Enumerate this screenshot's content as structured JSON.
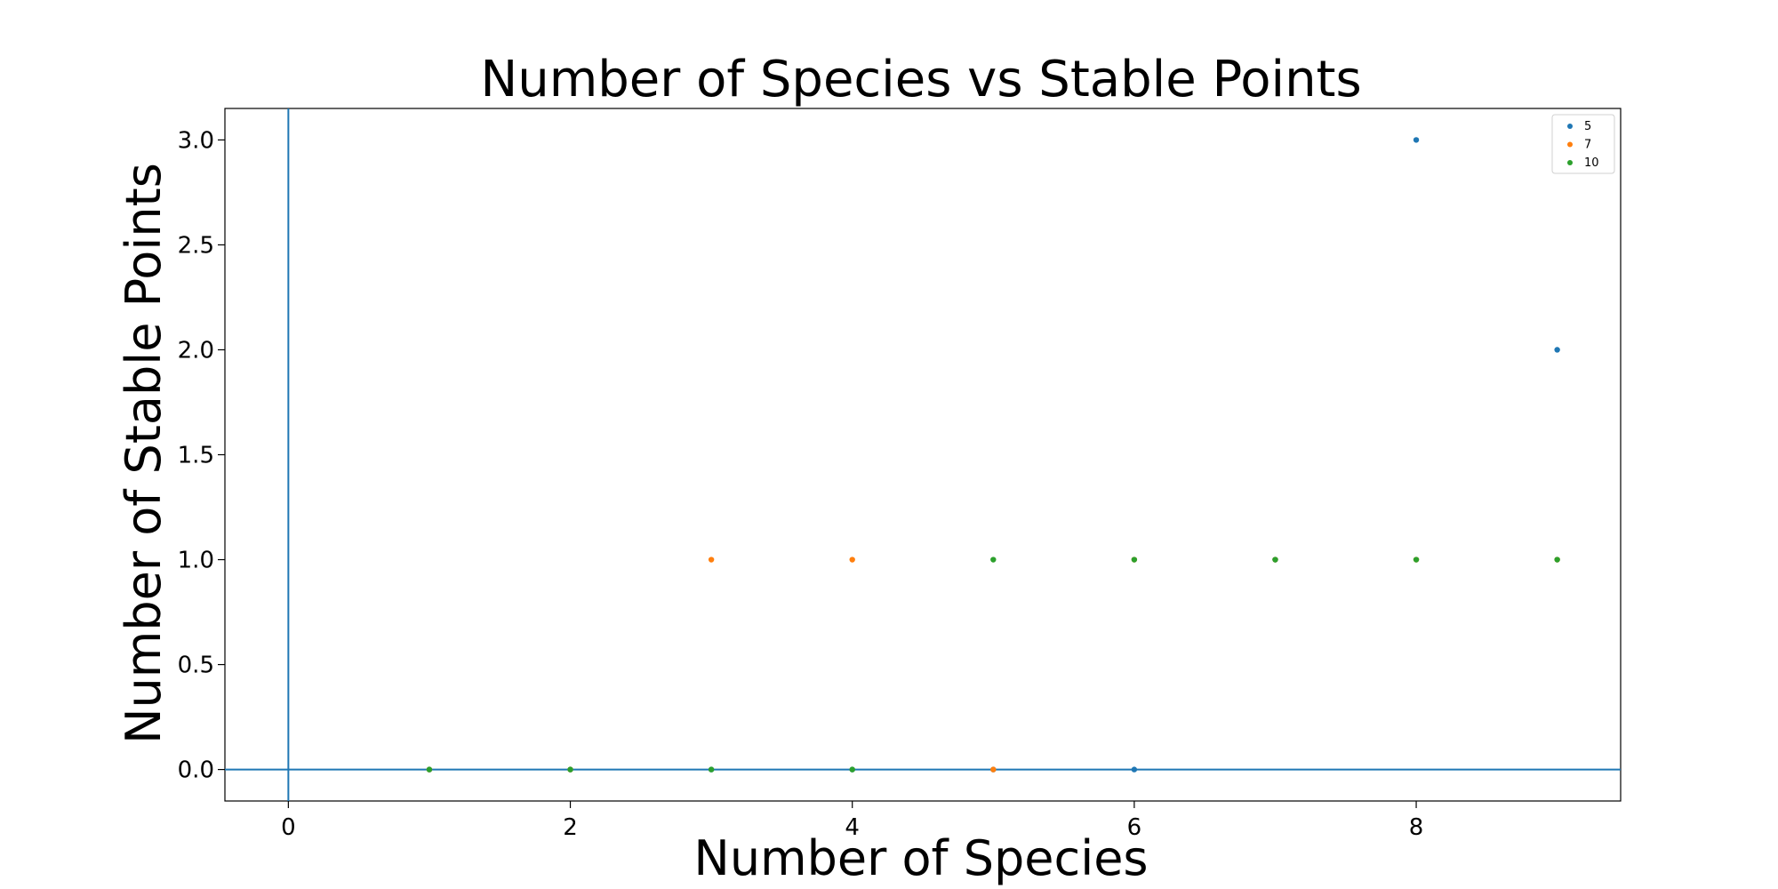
{
  "chart_data": {
    "type": "scatter",
    "title": "Number of Species vs Stable Points",
    "xlabel": "Number of Species",
    "ylabel": "Number of Stable Points",
    "xlim": [
      -0.45,
      9.45
    ],
    "ylim": [
      -0.15,
      3.15
    ],
    "xticks": [
      "0",
      "2",
      "4",
      "6",
      "8"
    ],
    "yticks": [
      "0.0",
      "0.5",
      "1.0",
      "1.5",
      "2.0",
      "2.5",
      "3.0"
    ],
    "grid": false,
    "legend_position": "top-right",
    "reference_lines": {
      "horizontal_y": 0,
      "vertical_x": 0,
      "color": "#1f77b4"
    },
    "series": [
      {
        "name": "5",
        "color": "#1f77b4",
        "x": [
          1,
          2,
          3,
          4,
          5,
          6,
          7,
          8,
          9
        ],
        "y": [
          0,
          0,
          0,
          0,
          0,
          0,
          1,
          3,
          2
        ]
      },
      {
        "name": "7",
        "color": "#ff7f0e",
        "x": [
          1,
          2,
          3,
          4,
          5,
          6,
          7,
          8,
          9
        ],
        "y": [
          0,
          0,
          1,
          1,
          0,
          1,
          1,
          1,
          1
        ]
      },
      {
        "name": "10",
        "color": "#2ca02c",
        "x": [
          1,
          2,
          3,
          4,
          5,
          6,
          7,
          8,
          9
        ],
        "y": [
          0,
          0,
          0,
          0,
          1,
          1,
          1,
          1,
          1
        ]
      }
    ]
  }
}
